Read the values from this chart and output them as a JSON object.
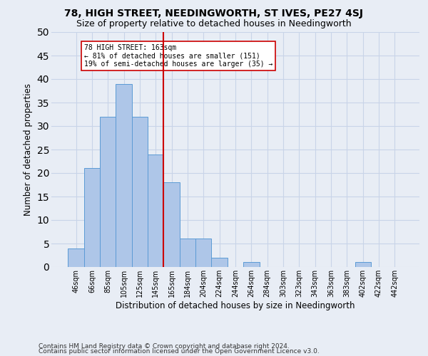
{
  "title": "78, HIGH STREET, NEEDINGWORTH, ST IVES, PE27 4SJ",
  "subtitle": "Size of property relative to detached houses in Needingworth",
  "xlabel": "Distribution of detached houses by size in Needingworth",
  "ylabel": "Number of detached properties",
  "footnote1": "Contains HM Land Registry data © Crown copyright and database right 2024.",
  "footnote2": "Contains public sector information licensed under the Open Government Licence v3.0.",
  "bar_labels": [
    "46sqm",
    "66sqm",
    "85sqm",
    "105sqm",
    "125sqm",
    "145sqm",
    "165sqm",
    "184sqm",
    "204sqm",
    "224sqm",
    "244sqm",
    "264sqm",
    "284sqm",
    "303sqm",
    "323sqm",
    "343sqm",
    "363sqm",
    "383sqm",
    "402sqm",
    "422sqm",
    "442sqm"
  ],
  "bar_values": [
    4,
    21,
    32,
    39,
    32,
    24,
    18,
    6,
    6,
    2,
    0,
    1,
    0,
    0,
    0,
    0,
    0,
    0,
    1,
    0,
    0
  ],
  "bar_color": "#aec6e8",
  "bar_edgecolor": "#5b9bd5",
  "vline_x_index": 6,
  "vline_color": "#cc0000",
  "annotation_text": "78 HIGH STREET: 163sqm\n← 81% of detached houses are smaller (151)\n19% of semi-detached houses are larger (35) →",
  "annotation_box_color": "#ffffff",
  "annotation_box_edgecolor": "#cc0000",
  "ylim": [
    0,
    50
  ],
  "yticks": [
    0,
    5,
    10,
    15,
    20,
    25,
    30,
    35,
    40,
    45,
    50
  ],
  "grid_color": "#c8d4e8",
  "background_color": "#e8edf5",
  "title_fontsize": 10,
  "subtitle_fontsize": 9,
  "xlabel_fontsize": 8.5,
  "ylabel_fontsize": 8.5,
  "footnote_fontsize": 6.5
}
